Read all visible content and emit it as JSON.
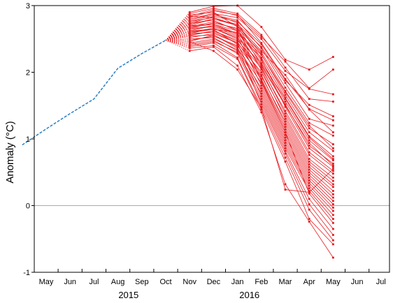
{
  "chart_data": {
    "type": "line",
    "title": "",
    "ylabel": "Anomaly (°C)",
    "xlabel": "",
    "ylim": [
      -1,
      3
    ],
    "yticks": [
      -1,
      0,
      1,
      2,
      3
    ],
    "months": [
      "May",
      "Jun",
      "Jul",
      "Aug",
      "Sep",
      "Oct",
      "Nov",
      "Dec",
      "Jan",
      "Feb",
      "Mar",
      "Apr",
      "May",
      "Jun",
      "Jul"
    ],
    "years": [
      {
        "label": "2015",
        "center_month_index": 4
      },
      {
        "label": "2016",
        "center_month_index": 8.5
      }
    ],
    "zero_line": true,
    "colors": {
      "observed": "#1f77c4",
      "forecast": "#e8191f",
      "zero_line": "#aaaaaa",
      "axis": "#000000"
    },
    "observed": {
      "style": "dashed",
      "x": [
        "2015-04",
        "2015-05",
        "2015-06",
        "2015-07",
        "2015-08",
        "2015-09",
        "2015-10"
      ],
      "y": [
        0.91,
        1.15,
        1.38,
        1.6,
        2.06,
        2.28,
        2.48
      ]
    },
    "forecast_origin": {
      "x": "2015-10",
      "y": 2.48
    },
    "forecast_months": [
      "2015-11",
      "2015-12",
      "2016-01",
      "2016-02",
      "2016-03",
      "2016-04",
      "2016-05"
    ],
    "forecasts": [
      [
        2.9,
        2.99,
        3.0,
        2.68,
        2.19,
        2.04,
        2.23
      ],
      [
        2.84,
        2.94,
        2.85,
        2.53,
        2.16,
        1.76,
        2.04
      ],
      [
        2.78,
        2.88,
        2.82,
        2.5,
        2.02,
        1.75,
        1.67
      ],
      [
        2.88,
        2.96,
        2.88,
        2.56,
        2.07,
        1.6,
        1.56
      ],
      [
        2.73,
        2.84,
        2.76,
        2.42,
        1.88,
        1.51,
        1.34
      ],
      [
        2.82,
        2.92,
        2.86,
        2.44,
        1.9,
        1.45,
        1.28
      ],
      [
        2.7,
        2.8,
        2.72,
        2.38,
        1.84,
        1.3,
        1.2
      ],
      [
        2.76,
        2.86,
        2.78,
        2.36,
        1.77,
        1.24,
        1.05
      ],
      [
        2.66,
        2.74,
        2.66,
        2.3,
        1.72,
        1.2,
        0.86
      ],
      [
        2.72,
        2.8,
        2.7,
        2.27,
        1.66,
        1.1,
        0.82
      ],
      [
        2.62,
        2.7,
        2.58,
        2.22,
        1.62,
        1.04,
        0.74
      ],
      [
        2.68,
        2.76,
        2.64,
        2.18,
        1.56,
        0.98,
        0.68
      ],
      [
        2.58,
        2.66,
        2.52,
        2.12,
        1.52,
        0.9,
        0.63
      ],
      [
        2.8,
        2.88,
        2.74,
        2.2,
        1.48,
        0.86,
        0.58
      ],
      [
        2.55,
        2.62,
        2.48,
        2.06,
        1.42,
        0.8,
        0.52
      ],
      [
        2.64,
        2.7,
        2.56,
        2.08,
        1.38,
        0.76,
        0.48
      ],
      [
        2.52,
        2.58,
        2.44,
        2.0,
        1.34,
        0.7,
        0.42
      ],
      [
        2.74,
        2.78,
        2.62,
        2.04,
        1.3,
        0.66,
        0.37
      ],
      [
        2.48,
        2.54,
        2.4,
        1.94,
        1.26,
        0.62,
        0.32
      ],
      [
        2.6,
        2.66,
        2.5,
        1.96,
        1.22,
        0.58,
        0.28
      ],
      [
        2.7,
        2.72,
        2.58,
        1.9,
        1.18,
        0.54,
        0.22
      ],
      [
        2.56,
        2.62,
        2.46,
        1.88,
        1.14,
        0.5,
        0.17
      ],
      [
        2.46,
        2.56,
        2.36,
        1.84,
        1.1,
        0.46,
        0.12
      ],
      [
        2.66,
        2.68,
        2.54,
        1.8,
        1.06,
        0.42,
        0.07
      ],
      [
        2.44,
        2.5,
        2.34,
        1.76,
        1.02,
        0.38,
        0.02
      ],
      [
        2.62,
        2.64,
        2.42,
        1.72,
        0.98,
        0.34,
        -0.03
      ],
      [
        2.4,
        2.46,
        2.3,
        1.68,
        0.94,
        0.3,
        -0.08
      ],
      [
        2.58,
        2.6,
        2.44,
        1.64,
        0.9,
        0.26,
        -0.14
      ],
      [
        2.5,
        2.52,
        2.32,
        1.6,
        0.86,
        0.22,
        -0.2
      ],
      [
        2.86,
        2.9,
        2.68,
        1.86,
        1.1,
        0.18,
        -0.26
      ],
      [
        2.42,
        2.48,
        2.28,
        1.56,
        0.82,
        0.1,
        -0.35
      ],
      [
        2.54,
        2.56,
        2.38,
        1.52,
        0.78,
        0.02,
        -0.44
      ],
      [
        2.38,
        2.44,
        2.22,
        1.48,
        0.72,
        -0.06,
        -0.52
      ],
      [
        2.36,
        2.4,
        2.2,
        1.44,
        0.66,
        -0.2,
        -0.58
      ],
      [
        2.32,
        2.38,
        2.1,
        1.4,
        0.32,
        -0.24,
        -0.78
      ],
      [
        2.46,
        2.32,
        2.04,
        1.46,
        0.24,
        0.2,
        0.55
      ],
      [
        2.84,
        2.82,
        2.7,
        2.32,
        1.96,
        1.44,
        1.1
      ],
      [
        2.6,
        2.64,
        2.6,
        2.26,
        1.7,
        1.16,
        0.92
      ],
      [
        2.68,
        2.72,
        2.62,
        2.14,
        1.6,
        1.02,
        0.7
      ],
      [
        2.76,
        2.82,
        2.7,
        2.1,
        1.5,
        0.94,
        0.6
      ]
    ]
  }
}
